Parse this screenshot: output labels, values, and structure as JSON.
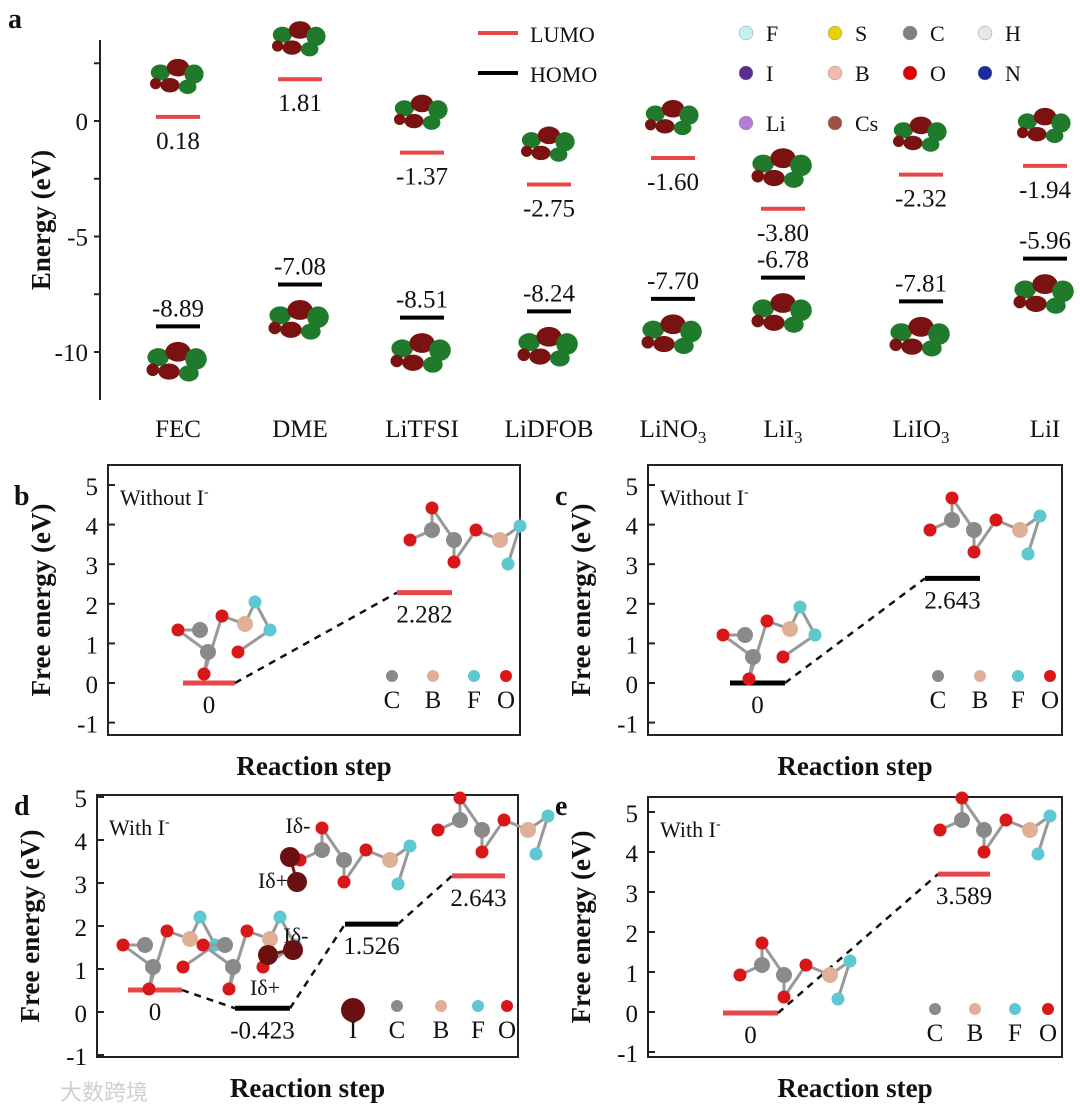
{
  "panel_a": {
    "label": "a",
    "ylabel": "Energy (eV)",
    "yticks": [
      0,
      -5,
      -10
    ],
    "legend": [
      {
        "label": "LUMO",
        "color": "#e8474a"
      },
      {
        "label": "HOMO",
        "color": "#000000"
      }
    ],
    "elements": [
      {
        "symbol": "F",
        "color": "#c4f0f0"
      },
      {
        "symbol": "S",
        "color": "#e6d200"
      },
      {
        "symbol": "C",
        "color": "#808080"
      },
      {
        "symbol": "H",
        "color": "#e6e6e6"
      },
      {
        "symbol": "I",
        "color": "#5a2d91"
      },
      {
        "symbol": "B",
        "color": "#f3b9b0"
      },
      {
        "symbol": "O",
        "color": "#e00000"
      },
      {
        "symbol": "N",
        "color": "#1b2a9c"
      },
      {
        "symbol": "Li",
        "color": "#b57ad6"
      },
      {
        "symbol": "Cs",
        "color": "#a0503e"
      }
    ],
    "molecules": [
      {
        "name": "FEC",
        "sub": "",
        "lumo": 0.18,
        "homo": -8.89,
        "lumo_text": "0.18",
        "homo_text": "-8.89"
      },
      {
        "name": "DME",
        "sub": "",
        "lumo": 1.81,
        "homo": -7.08,
        "lumo_text": "1.81",
        "homo_text": "-7.08"
      },
      {
        "name": "LiTFSI",
        "sub": "",
        "lumo": -1.37,
        "homo": -8.51,
        "lumo_text": "-1.37",
        "homo_text": "-8.51"
      },
      {
        "name": "LiDFOB",
        "sub": "",
        "lumo": -2.75,
        "homo": -8.24,
        "lumo_text": "-2.75",
        "homo_text": "-8.24"
      },
      {
        "name": "LiNO",
        "sub": "3",
        "lumo": -1.6,
        "homo": -7.7,
        "lumo_text": "-1.60",
        "homo_text": "-7.70"
      },
      {
        "name": "LiI",
        "sub": "3",
        "lumo": -3.8,
        "homo": -6.78,
        "lumo_text": "-3.80",
        "homo_text": "-6.78"
      },
      {
        "name": "LiIO",
        "sub": "3",
        "lumo": -2.32,
        "homo": -7.81,
        "lumo_text": "-2.32",
        "homo_text": "-7.81"
      },
      {
        "name": "LiI",
        "sub": "",
        "lumo": -1.94,
        "homo": -5.96,
        "lumo_text": "-1.94",
        "homo_text": "-5.96"
      }
    ]
  },
  "chart_data": [
    {
      "type": "line",
      "panel": "b",
      "title": "Without I",
      "title_sup": "-",
      "ylabel": "Free energy (eV)",
      "xlabel": "Reaction step",
      "ylim": [
        -1,
        5
      ],
      "yticks": [
        5,
        4,
        3,
        2,
        1,
        0,
        -1
      ],
      "levels": [
        {
          "value": 0,
          "text": "0",
          "color": "#e8474a"
        },
        {
          "value": 2.282,
          "text": "2.282",
          "color": "#e8474a"
        }
      ],
      "atoms": [
        {
          "symbol": "C",
          "color": "#8a8a8a"
        },
        {
          "symbol": "B",
          "color": "#e0b096"
        },
        {
          "symbol": "F",
          "color": "#5cc8d0"
        },
        {
          "symbol": "O",
          "color": "#d81818"
        }
      ]
    },
    {
      "type": "line",
      "panel": "c",
      "title": "Without I",
      "title_sup": "-",
      "ylabel": "Free energy (eV)",
      "xlabel": "Reaction step",
      "ylim": [
        -1,
        5
      ],
      "yticks": [
        5,
        4,
        3,
        2,
        1,
        0,
        -1
      ],
      "levels": [
        {
          "value": 0,
          "text": "0",
          "color": "#000000"
        },
        {
          "value": 2.643,
          "text": "2.643",
          "color": "#000000"
        }
      ],
      "atoms": [
        {
          "symbol": "C",
          "color": "#8a8a8a"
        },
        {
          "symbol": "B",
          "color": "#e0b096"
        },
        {
          "symbol": "F",
          "color": "#5cc8d0"
        },
        {
          "symbol": "O",
          "color": "#d81818"
        }
      ]
    },
    {
      "type": "line",
      "panel": "d",
      "title": "With I",
      "title_sup": "-",
      "ylabel": "Free energy (eV)",
      "xlabel": "Reaction step",
      "ylim": [
        -1,
        5
      ],
      "yticks": [
        5,
        4,
        3,
        2,
        1,
        0,
        -1
      ],
      "levels": [
        {
          "value": 0,
          "text": "0",
          "color": "#e8474a"
        },
        {
          "value": -0.423,
          "text": "-0.423",
          "color": "#000000"
        },
        {
          "value": 1.526,
          "text": "1.526",
          "color": "#000000"
        },
        {
          "value": 2.643,
          "text": "2.643",
          "color": "#e8474a"
        }
      ],
      "annotations": [
        "Iδ-",
        "Iδ+",
        "Iδ-",
        "Iδ+"
      ],
      "atoms": [
        {
          "symbol": "I",
          "color": "#6b1010"
        },
        {
          "symbol": "C",
          "color": "#8a8a8a"
        },
        {
          "symbol": "B",
          "color": "#e0b096"
        },
        {
          "symbol": "F",
          "color": "#5cc8d0"
        },
        {
          "symbol": "O",
          "color": "#d81818"
        }
      ]
    },
    {
      "type": "line",
      "panel": "e",
      "title": "With I",
      "title_sup": "-",
      "ylabel": "Free energy (eV)",
      "xlabel": "Reaction step",
      "ylim": [
        -1,
        5
      ],
      "yticks": [
        5,
        4,
        3,
        2,
        1,
        0,
        -1
      ],
      "levels": [
        {
          "value": 0,
          "text": "0",
          "color": "#e8474a"
        },
        {
          "value": 3.589,
          "text": "3.589",
          "color": "#e8474a"
        }
      ],
      "atoms": [
        {
          "symbol": "C",
          "color": "#8a8a8a"
        },
        {
          "symbol": "B",
          "color": "#e0b096"
        },
        {
          "symbol": "F",
          "color": "#5cc8d0"
        },
        {
          "symbol": "O",
          "color": "#d81818"
        }
      ]
    }
  ],
  "watermark": "大数跨境"
}
